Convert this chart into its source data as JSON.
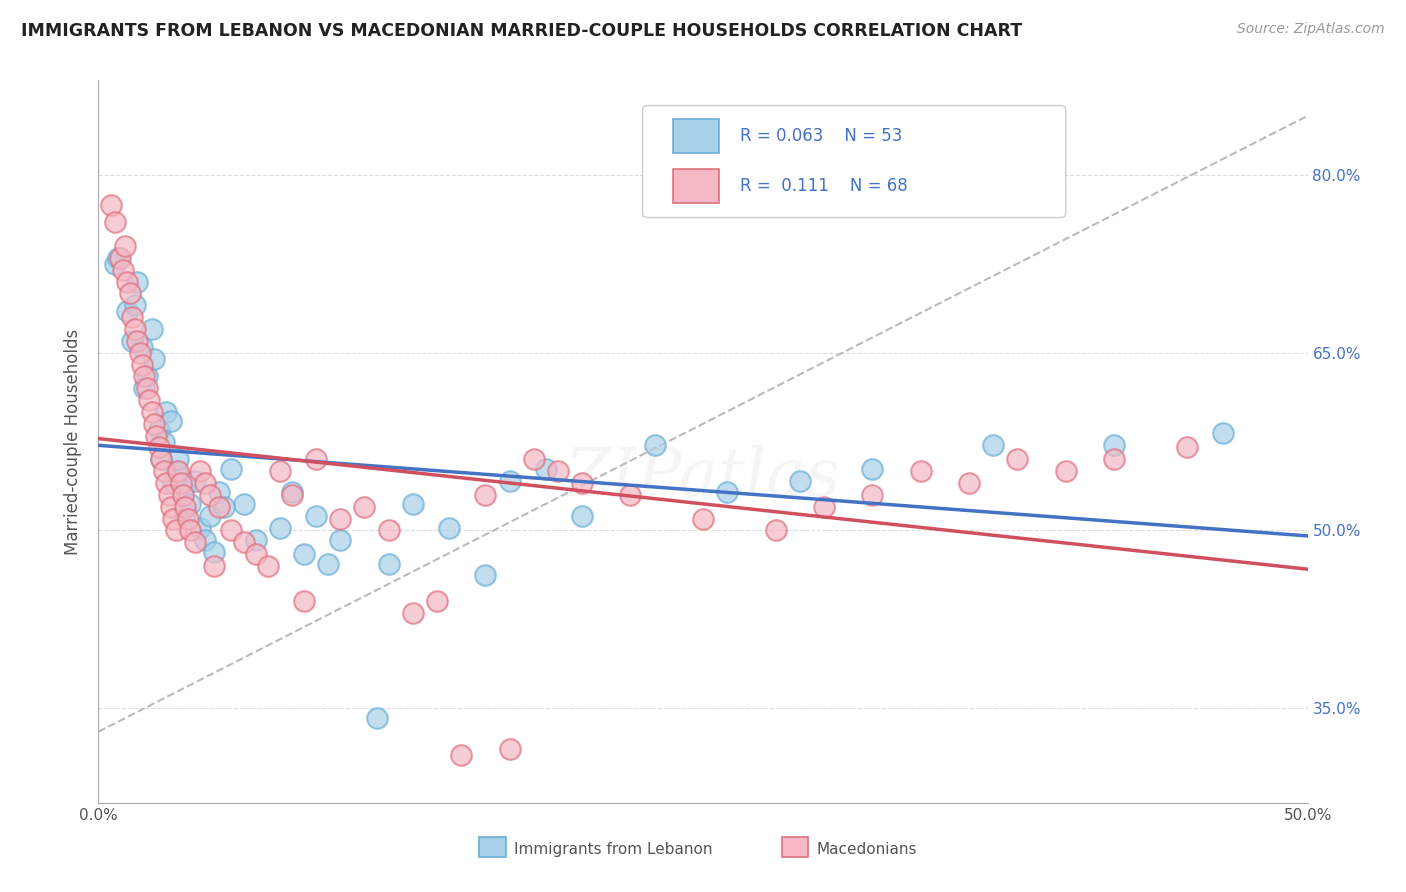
{
  "title": "IMMIGRANTS FROM LEBANON VS MACEDONIAN MARRIED-COUPLE HOUSEHOLDS CORRELATION CHART",
  "source": "Source: ZipAtlas.com",
  "ylabel": "Married-couple Households",
  "xlabel_legend1": "Immigrants from Lebanon",
  "xlabel_legend2": "Macedonians",
  "xlim": [
    0.0,
    0.5
  ],
  "ylim": [
    0.27,
    0.88
  ],
  "xtick_left": "0.0%",
  "xtick_right": "50.0%",
  "yticks_right": [
    0.35,
    0.5,
    0.65,
    0.8
  ],
  "yticklabels_right": [
    "35.0%",
    "50.0%",
    "65.0%",
    "80.0%"
  ],
  "R1": 0.063,
  "N1": 53,
  "R2": 0.111,
  "N2": 68,
  "color_blue_fill": "#A8D0E8",
  "color_blue_edge": "#6AAED6",
  "color_pink_fill": "#F5B8C4",
  "color_pink_edge": "#E07080",
  "color_line_blue": "#4472C4",
  "color_line_pink": "#D05060",
  "color_diag": "#BBBBBB",
  "color_grid": "#DDDDDD",
  "background": "#FFFFFF",
  "watermark_color": "#CCCCCC",
  "blue_x": [
    0.007,
    0.008,
    0.012,
    0.015,
    0.016,
    0.018,
    0.02,
    0.022,
    0.023,
    0.025,
    0.027,
    0.028,
    0.03,
    0.032,
    0.033,
    0.035,
    0.036,
    0.038,
    0.04,
    0.042,
    0.044,
    0.046,
    0.048,
    0.05,
    0.055,
    0.06,
    0.065,
    0.075,
    0.08,
    0.09,
    0.095,
    0.1,
    0.115,
    0.12,
    0.13,
    0.145,
    0.16,
    0.17,
    0.185,
    0.2,
    0.23,
    0.26,
    0.29,
    0.32,
    0.37,
    0.42,
    0.465,
    0.014,
    0.019,
    0.026,
    0.031,
    0.052,
    0.085
  ],
  "blue_y": [
    0.725,
    0.73,
    0.685,
    0.69,
    0.71,
    0.655,
    0.63,
    0.67,
    0.645,
    0.585,
    0.575,
    0.6,
    0.592,
    0.55,
    0.56,
    0.535,
    0.515,
    0.522,
    0.542,
    0.502,
    0.492,
    0.512,
    0.482,
    0.532,
    0.552,
    0.522,
    0.492,
    0.502,
    0.532,
    0.512,
    0.472,
    0.492,
    0.342,
    0.472,
    0.522,
    0.502,
    0.462,
    0.542,
    0.552,
    0.512,
    0.572,
    0.532,
    0.542,
    0.552,
    0.572,
    0.572,
    0.582,
    0.66,
    0.62,
    0.56,
    0.54,
    0.52,
    0.48
  ],
  "pink_x": [
    0.005,
    0.007,
    0.009,
    0.01,
    0.011,
    0.012,
    0.013,
    0.014,
    0.015,
    0.016,
    0.017,
    0.018,
    0.019,
    0.02,
    0.021,
    0.022,
    0.023,
    0.024,
    0.025,
    0.026,
    0.027,
    0.028,
    0.029,
    0.03,
    0.031,
    0.032,
    0.033,
    0.034,
    0.035,
    0.036,
    0.037,
    0.038,
    0.04,
    0.042,
    0.044,
    0.046,
    0.048,
    0.05,
    0.055,
    0.06,
    0.065,
    0.07,
    0.075,
    0.08,
    0.085,
    0.09,
    0.1,
    0.11,
    0.12,
    0.13,
    0.14,
    0.15,
    0.16,
    0.17,
    0.18,
    0.19,
    0.2,
    0.22,
    0.25,
    0.28,
    0.3,
    0.32,
    0.34,
    0.36,
    0.38,
    0.4,
    0.42,
    0.45
  ],
  "pink_y": [
    0.775,
    0.76,
    0.73,
    0.72,
    0.74,
    0.71,
    0.7,
    0.68,
    0.67,
    0.66,
    0.65,
    0.64,
    0.63,
    0.62,
    0.61,
    0.6,
    0.59,
    0.58,
    0.57,
    0.56,
    0.55,
    0.54,
    0.53,
    0.52,
    0.51,
    0.5,
    0.55,
    0.54,
    0.53,
    0.52,
    0.51,
    0.5,
    0.49,
    0.55,
    0.54,
    0.53,
    0.47,
    0.52,
    0.5,
    0.49,
    0.48,
    0.47,
    0.55,
    0.53,
    0.44,
    0.56,
    0.51,
    0.52,
    0.5,
    0.43,
    0.44,
    0.31,
    0.53,
    0.315,
    0.56,
    0.55,
    0.54,
    0.53,
    0.51,
    0.5,
    0.52,
    0.53,
    0.55,
    0.54,
    0.56,
    0.55,
    0.56,
    0.57
  ]
}
